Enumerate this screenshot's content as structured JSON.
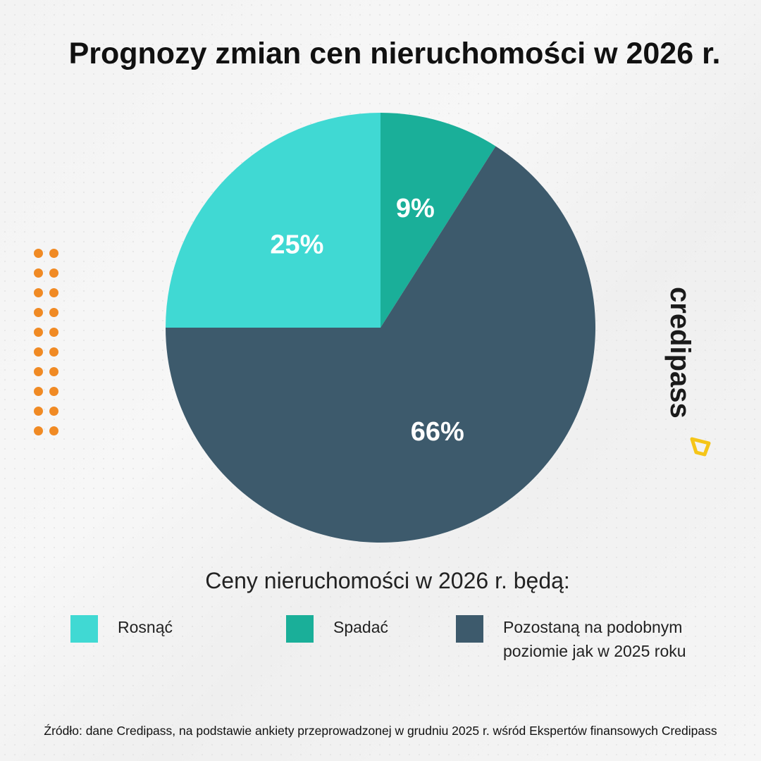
{
  "title": "Prognozy zmian cen nieruchomości w 2026 r.",
  "chart_data": {
    "type": "pie",
    "title": "Prognozy zmian cen nieruchomości w 2026 r.",
    "start_angle": "12 o'clock, clockwise",
    "slices": [
      {
        "name": "Spadać",
        "value": 9,
        "label": "9%",
        "color": "#1aaf99"
      },
      {
        "name": "Pozostaną na podobnym poziomie jak w 2025 roku",
        "value": 66,
        "label": "66%",
        "color": "#3d5a6c"
      },
      {
        "name": "Rosnąć",
        "value": 25,
        "label": "25%",
        "color": "#40d9d3"
      }
    ],
    "legend_title": "Ceny nieruchomości w 2026 r. będą:",
    "legend_placement": "bottom"
  },
  "legend": {
    "title": "Ceny nieruchomości w 2026 r. będą:",
    "items": [
      {
        "label": "Rosnąć",
        "color": "#40d9d3"
      },
      {
        "label": "Spadać",
        "color": "#1aaf99"
      },
      {
        "label_line1": "Pozostaną na podobnym",
        "label_line2": "poziomie jak w 2025 roku",
        "color": "#3d5a6c"
      }
    ]
  },
  "logo": {
    "text": "credipass",
    "accent_color": "#f5c518"
  },
  "decor_color": "#f08a24",
  "source": "Źródło: dane Credipass, na podstawie ankiety przeprowadzonej w grudniu 2025 r. wśród Ekspertów finansowych Credipass"
}
